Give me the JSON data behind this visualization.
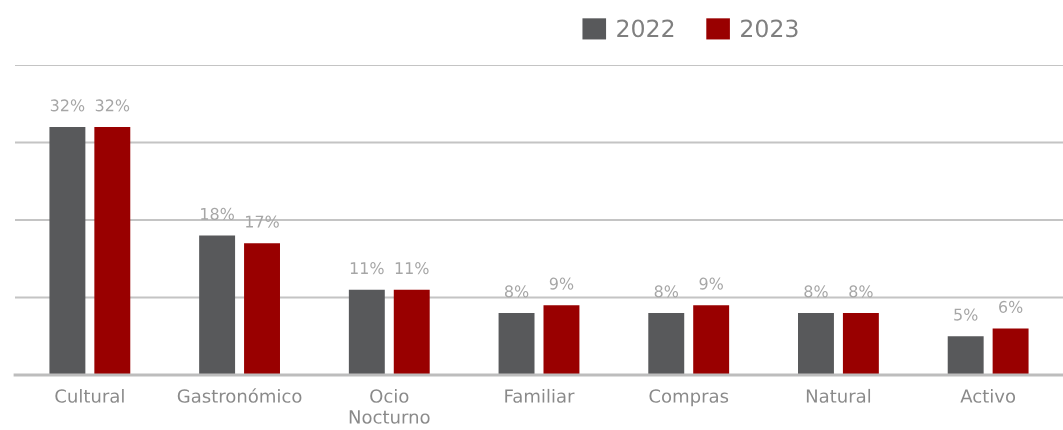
{
  "chart_data": {
    "type": "bar",
    "categories": [
      "Cultural",
      "Gastronómico",
      "Ocio Nocturno",
      "Familiar",
      "Compras",
      "Natural",
      "Activo"
    ],
    "series": [
      {
        "name": "2022",
        "color": "#58595b",
        "values": [
          32,
          18,
          11,
          8,
          8,
          8,
          5
        ],
        "value_labels": [
          "32%",
          "18%",
          "11%",
          "8%",
          "8%",
          "8%",
          "5%"
        ]
      },
      {
        "name": "2023",
        "color": "#990000",
        "values": [
          32,
          17,
          11,
          9,
          9,
          8,
          6
        ],
        "value_labels": [
          "32%",
          "17%",
          "11%",
          "9%",
          "9%",
          "8%",
          "6%"
        ]
      }
    ],
    "ylim": [
      0,
      40
    ],
    "yticks": [
      {
        "value": 0,
        "label": null
      },
      {
        "value": 10,
        "label": null
      },
      {
        "value": 20,
        "label": null
      },
      {
        "value": 30,
        "label": null
      },
      {
        "value": 40,
        "label": null
      }
    ],
    "tick_labels": "x",
    "grid": "y",
    "legend": "top"
  }
}
